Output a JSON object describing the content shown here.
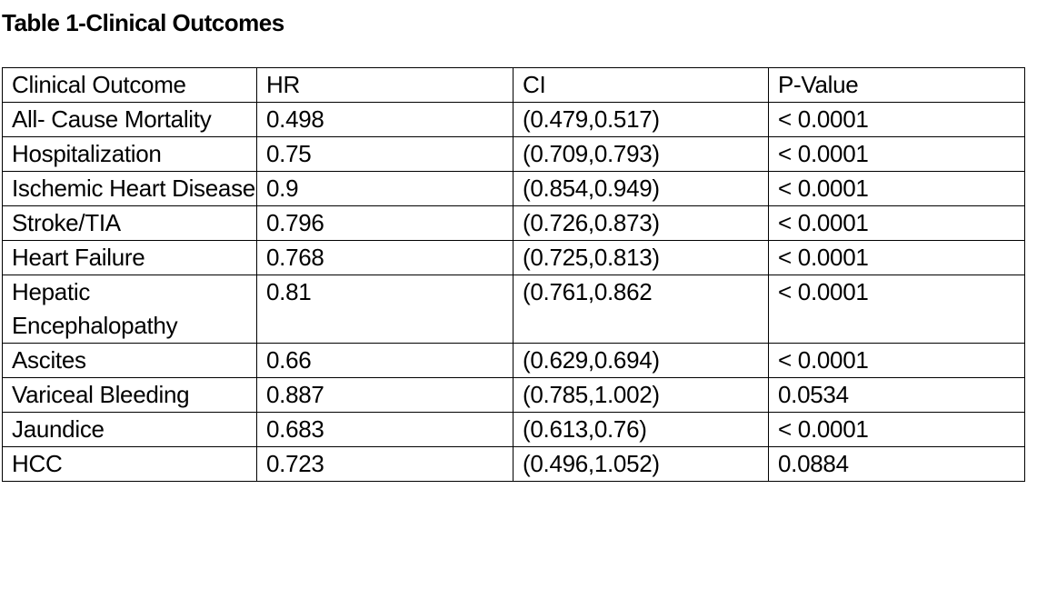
{
  "title": "Table 1-Clinical Outcomes",
  "table": {
    "headers": [
      "Clinical Outcome",
      "HR",
      "CI",
      "P-Value"
    ],
    "rows": [
      [
        "All- Cause Mortality",
        "0.498",
        "(0.479,0.517)",
        "< 0.0001"
      ],
      [
        "Hospitalization",
        "0.75",
        "(0.709,0.793)",
        "< 0.0001"
      ],
      [
        "Ischemic Heart Disease",
        "0.9",
        "(0.854,0.949)",
        "< 0.0001"
      ],
      [
        "Stroke/TIA",
        "0.796",
        "(0.726,0.873)",
        "< 0.0001"
      ],
      [
        "Heart Failure",
        "0.768",
        "(0.725,0.813)",
        "< 0.0001"
      ],
      [
        "Hepatic Encephalopathy",
        "0.81",
        "(0.761,0.862",
        "< 0.0001"
      ],
      [
        "Ascites",
        "0.66",
        "(0.629,0.694)",
        "< 0.0001"
      ],
      [
        "Variceal Bleeding",
        "0.887",
        "(0.785,1.002)",
        "0.0534"
      ],
      [
        "Jaundice",
        "0.683",
        "(0.613,0.76)",
        "< 0.0001"
      ],
      [
        "HCC",
        "0.723",
        "(0.496,1.052)",
        "0.0884"
      ]
    ]
  }
}
